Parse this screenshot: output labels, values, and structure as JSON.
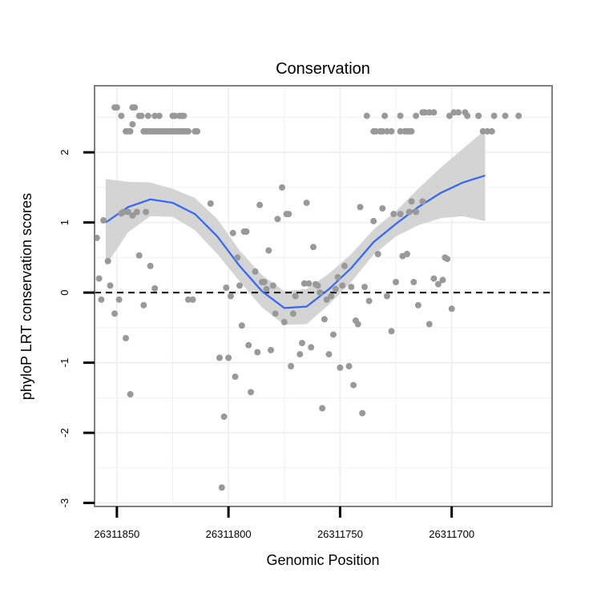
{
  "chart_data": {
    "type": "scatter",
    "title": "Conservation",
    "xlabel": "Genomic Position",
    "ylabel": "phyloP LRT conservation scores",
    "x_reversed": true,
    "xlim": [
      26311860,
      26311655
    ],
    "ylim": [
      -3.05,
      2.95
    ],
    "x_ticks": [
      26311850,
      26311800,
      26311750,
      26311700
    ],
    "x_tick_labels": [
      "26311850",
      "26311800",
      "26311750",
      "26311700"
    ],
    "y_ticks": [
      -3,
      -2,
      -1,
      0,
      1,
      2
    ],
    "y_tick_labels": [
      "-3",
      "-2",
      "-1",
      "0",
      "1",
      "2"
    ],
    "grid": true,
    "reference_line": {
      "y": 0,
      "style": "dashed"
    },
    "colors": {
      "points": "#999999",
      "smooth_line": "#3366FF",
      "ribbon": "#D4D4D4",
      "panel_border": "#808080",
      "grid": "#F0F0F0"
    },
    "series": [
      {
        "kind": "points",
        "points": [
          {
            "x": 26311851,
            "y": 2.64
          },
          {
            "x": 26311850,
            "y": 2.64
          },
          {
            "x": 26311843,
            "y": 2.64
          },
          {
            "x": 26311842,
            "y": 2.64
          },
          {
            "x": 26311848,
            "y": 2.52
          },
          {
            "x": 26311840,
            "y": 2.52
          },
          {
            "x": 26311839,
            "y": 2.52
          },
          {
            "x": 26311836,
            "y": 2.52
          },
          {
            "x": 26311833,
            "y": 2.52
          },
          {
            "x": 26311831,
            "y": 2.52
          },
          {
            "x": 26311825,
            "y": 2.52
          },
          {
            "x": 26311824,
            "y": 2.52
          },
          {
            "x": 26311822,
            "y": 2.52
          },
          {
            "x": 26311821,
            "y": 2.52
          },
          {
            "x": 26311820,
            "y": 2.52
          },
          {
            "x": 26311825,
            "y": 2.3
          },
          {
            "x": 26311824,
            "y": 2.3
          },
          {
            "x": 26311823,
            "y": 2.3
          },
          {
            "x": 26311822,
            "y": 2.3
          },
          {
            "x": 26311821,
            "y": 2.3
          },
          {
            "x": 26311820,
            "y": 2.3
          },
          {
            "x": 26311819,
            "y": 2.3
          },
          {
            "x": 26311818,
            "y": 2.3
          },
          {
            "x": 26311846,
            "y": 2.3
          },
          {
            "x": 26311845,
            "y": 2.3
          },
          {
            "x": 26311844,
            "y": 2.3
          },
          {
            "x": 26311838,
            "y": 2.3
          },
          {
            "x": 26311837,
            "y": 2.3
          },
          {
            "x": 26311836,
            "y": 2.3
          },
          {
            "x": 26311835,
            "y": 2.3
          },
          {
            "x": 26311834,
            "y": 2.3
          },
          {
            "x": 26311833,
            "y": 2.3
          },
          {
            "x": 26311832,
            "y": 2.3
          },
          {
            "x": 26311831,
            "y": 2.3
          },
          {
            "x": 26311830,
            "y": 2.3
          },
          {
            "x": 26311829,
            "y": 2.3
          },
          {
            "x": 26311828,
            "y": 2.3
          },
          {
            "x": 26311827,
            "y": 2.3
          },
          {
            "x": 26311826,
            "y": 2.3
          },
          {
            "x": 26311815,
            "y": 2.3
          },
          {
            "x": 26311814,
            "y": 2.3
          },
          {
            "x": 26311843,
            "y": 2.4
          },
          {
            "x": 26311738,
            "y": 2.52
          },
          {
            "x": 26311730,
            "y": 2.52
          },
          {
            "x": 26311723,
            "y": 2.52
          },
          {
            "x": 26311716,
            "y": 2.52
          },
          {
            "x": 26311701,
            "y": 2.52
          },
          {
            "x": 26311693,
            "y": 2.52
          },
          {
            "x": 26311688,
            "y": 2.52
          },
          {
            "x": 26311676,
            "y": 2.52
          },
          {
            "x": 26311670,
            "y": 2.52
          },
          {
            "x": 26311735,
            "y": 2.3
          },
          {
            "x": 26311734,
            "y": 2.3
          },
          {
            "x": 26311732,
            "y": 2.3
          },
          {
            "x": 26311731,
            "y": 2.3
          },
          {
            "x": 26311729,
            "y": 2.3
          },
          {
            "x": 26311727,
            "y": 2.3
          },
          {
            "x": 26311723,
            "y": 2.3
          },
          {
            "x": 26311721,
            "y": 2.3
          },
          {
            "x": 26311720,
            "y": 2.3
          },
          {
            "x": 26311719,
            "y": 2.3
          },
          {
            "x": 26311718,
            "y": 2.3
          },
          {
            "x": 26311686,
            "y": 2.3
          },
          {
            "x": 26311684,
            "y": 2.3
          },
          {
            "x": 26311682,
            "y": 2.3
          },
          {
            "x": 26311713,
            "y": 2.57
          },
          {
            "x": 26311712,
            "y": 2.57
          },
          {
            "x": 26311710,
            "y": 2.57
          },
          {
            "x": 26311708,
            "y": 2.57
          },
          {
            "x": 26311699,
            "y": 2.57
          },
          {
            "x": 26311697,
            "y": 2.57
          },
          {
            "x": 26311694,
            "y": 2.57
          },
          {
            "x": 26311688,
            "y": 2.52
          },
          {
            "x": 26311681,
            "y": 2.52
          },
          {
            "x": 26311859,
            "y": 0.78
          },
          {
            "x": 26311858,
            "y": 0.2
          },
          {
            "x": 26311857,
            "y": -0.1
          },
          {
            "x": 26311856,
            "y": 1.03
          },
          {
            "x": 26311854,
            "y": 0.45
          },
          {
            "x": 26311853,
            "y": 0.1
          },
          {
            "x": 26311851,
            "y": -0.3
          },
          {
            "x": 26311849,
            "y": -0.1
          },
          {
            "x": 26311848,
            "y": 1.13
          },
          {
            "x": 26311847,
            "y": 1.15
          },
          {
            "x": 26311846,
            "y": -0.65
          },
          {
            "x": 26311845,
            "y": 1.15
          },
          {
            "x": 26311844,
            "y": -1.45
          },
          {
            "x": 26311843,
            "y": 1.1
          },
          {
            "x": 26311841,
            "y": 1.15
          },
          {
            "x": 26311840,
            "y": 0.53
          },
          {
            "x": 26311838,
            "y": -0.18
          },
          {
            "x": 26311837,
            "y": 1.15
          },
          {
            "x": 26311835,
            "y": 0.38
          },
          {
            "x": 26311833,
            "y": 0.06
          },
          {
            "x": 26311818,
            "y": -0.1
          },
          {
            "x": 26311816,
            "y": -0.1
          },
          {
            "x": 26311808,
            "y": 1.27
          },
          {
            "x": 26311804,
            "y": -0.93
          },
          {
            "x": 26311803,
            "y": -2.78
          },
          {
            "x": 26311802,
            "y": -1.77
          },
          {
            "x": 26311801,
            "y": 0.07
          },
          {
            "x": 26311800,
            "y": -0.93
          },
          {
            "x": 26311799,
            "y": -0.05
          },
          {
            "x": 26311798,
            "y": 0.85
          },
          {
            "x": 26311797,
            "y": -1.2
          },
          {
            "x": 26311796,
            "y": 0.5
          },
          {
            "x": 26311795,
            "y": 0.1
          },
          {
            "x": 26311794,
            "y": -0.47
          },
          {
            "x": 26311793,
            "y": 0.87
          },
          {
            "x": 26311792,
            "y": 0.87
          },
          {
            "x": 26311791,
            "y": -0.75
          },
          {
            "x": 26311790,
            "y": -1.42
          },
          {
            "x": 26311788,
            "y": 0.3
          },
          {
            "x": 26311787,
            "y": -0.85
          },
          {
            "x": 26311786,
            "y": 1.25
          },
          {
            "x": 26311785,
            "y": 0.15
          },
          {
            "x": 26311784,
            "y": 0.15
          },
          {
            "x": 26311783,
            "y": 0.05
          },
          {
            "x": 26311782,
            "y": 0.6
          },
          {
            "x": 26311781,
            "y": -0.82
          },
          {
            "x": 26311780,
            "y": 0.1
          },
          {
            "x": 26311779,
            "y": -0.3
          },
          {
            "x": 26311778,
            "y": 1.05
          },
          {
            "x": 26311776,
            "y": 1.5
          },
          {
            "x": 26311775,
            "y": -0.42
          },
          {
            "x": 26311774,
            "y": 1.12
          },
          {
            "x": 26311773,
            "y": 1.12
          },
          {
            "x": 26311772,
            "y": -1.05
          },
          {
            "x": 26311771,
            "y": -0.3
          },
          {
            "x": 26311770,
            "y": -0.05
          },
          {
            "x": 26311768,
            "y": -0.88
          },
          {
            "x": 26311767,
            "y": -0.72
          },
          {
            "x": 26311766,
            "y": 0.13
          },
          {
            "x": 26311765,
            "y": 1.28
          },
          {
            "x": 26311764,
            "y": 0.13
          },
          {
            "x": 26311763,
            "y": -0.78
          },
          {
            "x": 26311762,
            "y": 0.65
          },
          {
            "x": 26311761,
            "y": 0.12
          },
          {
            "x": 26311760,
            "y": 0.1
          },
          {
            "x": 26311759,
            "y": 0.0
          },
          {
            "x": 26311758,
            "y": -1.65
          },
          {
            "x": 26311757,
            "y": -0.38
          },
          {
            "x": 26311756,
            "y": -0.1
          },
          {
            "x": 26311755,
            "y": -0.88
          },
          {
            "x": 26311754,
            "y": -0.05
          },
          {
            "x": 26311753,
            "y": -0.6
          },
          {
            "x": 26311752,
            "y": 0.05
          },
          {
            "x": 26311751,
            "y": 0.22
          },
          {
            "x": 26311750,
            "y": -1.07
          },
          {
            "x": 26311749,
            "y": 0.1
          },
          {
            "x": 26311748,
            "y": 0.38
          },
          {
            "x": 26311746,
            "y": -1.05
          },
          {
            "x": 26311745,
            "y": 0.08
          },
          {
            "x": 26311744,
            "y": -1.32
          },
          {
            "x": 26311743,
            "y": -0.4
          },
          {
            "x": 26311742,
            "y": -0.45
          },
          {
            "x": 26311741,
            "y": 1.22
          },
          {
            "x": 26311740,
            "y": -1.72
          },
          {
            "x": 26311739,
            "y": 0.08
          },
          {
            "x": 26311737,
            "y": -0.12
          },
          {
            "x": 26311735,
            "y": 1.02
          },
          {
            "x": 26311733,
            "y": 0.55
          },
          {
            "x": 26311731,
            "y": 1.2
          },
          {
            "x": 26311729,
            "y": -0.05
          },
          {
            "x": 26311727,
            "y": -0.55
          },
          {
            "x": 26311726,
            "y": 1.12
          },
          {
            "x": 26311725,
            "y": 0.15
          },
          {
            "x": 26311723,
            "y": 1.12
          },
          {
            "x": 26311722,
            "y": 0.52
          },
          {
            "x": 26311720,
            "y": 0.55
          },
          {
            "x": 26311719,
            "y": 1.15
          },
          {
            "x": 26311718,
            "y": 1.3
          },
          {
            "x": 26311717,
            "y": 0.15
          },
          {
            "x": 26311716,
            "y": 1.15
          },
          {
            "x": 26311715,
            "y": -0.18
          },
          {
            "x": 26311713,
            "y": 1.3
          },
          {
            "x": 26311710,
            "y": -0.45
          },
          {
            "x": 26311708,
            "y": 0.2
          },
          {
            "x": 26311706,
            "y": 0.12
          },
          {
            "x": 26311704,
            "y": 0.18
          },
          {
            "x": 26311703,
            "y": 0.5
          },
          {
            "x": 26311702,
            "y": 0.48
          },
          {
            "x": 26311700,
            "y": -0.23
          }
        ]
      },
      {
        "kind": "smooth",
        "points": [
          {
            "x": 26311855,
            "y": 1.0
          },
          {
            "x": 26311845,
            "y": 1.22
          },
          {
            "x": 26311835,
            "y": 1.33
          },
          {
            "x": 26311825,
            "y": 1.28
          },
          {
            "x": 26311815,
            "y": 1.12
          },
          {
            "x": 26311805,
            "y": 0.8
          },
          {
            "x": 26311795,
            "y": 0.38
          },
          {
            "x": 26311785,
            "y": 0.02
          },
          {
            "x": 26311775,
            "y": -0.22
          },
          {
            "x": 26311765,
            "y": -0.2
          },
          {
            "x": 26311755,
            "y": 0.05
          },
          {
            "x": 26311745,
            "y": 0.35
          },
          {
            "x": 26311735,
            "y": 0.72
          },
          {
            "x": 26311725,
            "y": 0.98
          },
          {
            "x": 26311715,
            "y": 1.22
          },
          {
            "x": 26311705,
            "y": 1.42
          },
          {
            "x": 26311695,
            "y": 1.57
          },
          {
            "x": 26311685,
            "y": 1.67
          }
        ],
        "ribbon_upper": [
          1.62,
          1.58,
          1.57,
          1.48,
          1.35,
          1.05,
          0.6,
          0.25,
          0.02,
          0.05,
          0.27,
          0.55,
          0.9,
          1.16,
          1.48,
          1.78,
          2.05,
          2.32
        ],
        "ribbon_lower": [
          0.38,
          0.86,
          1.09,
          1.08,
          0.89,
          0.55,
          0.16,
          -0.21,
          -0.46,
          -0.45,
          -0.17,
          0.15,
          0.54,
          0.8,
          0.96,
          1.06,
          1.09,
          1.02
        ]
      }
    ]
  }
}
